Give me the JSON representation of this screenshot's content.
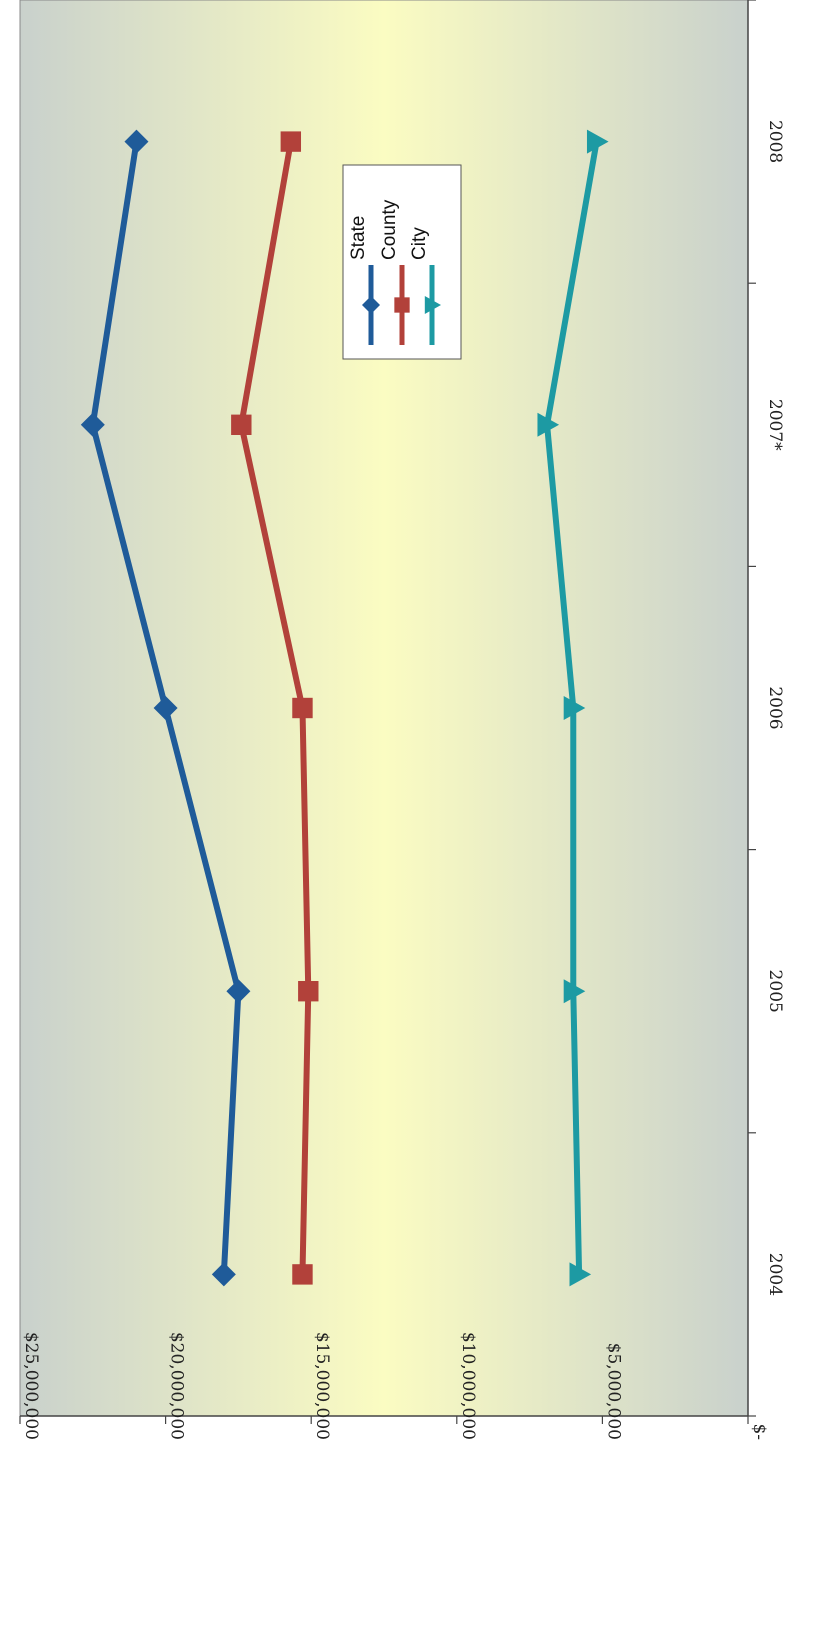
{
  "chart_data": {
    "type": "line",
    "orientation": "rotated-90-clockwise",
    "categories": [
      "2004",
      "2005",
      "2006",
      "2007*",
      "2008"
    ],
    "series": [
      {
        "name": "State",
        "marker": "diamond",
        "color": "#1f5b99",
        "values": [
          18000000,
          17500000,
          20000000,
          22500000,
          21000000
        ]
      },
      {
        "name": "County",
        "marker": "square",
        "color": "#b2413a",
        "values": [
          15300000,
          15100000,
          15300000,
          17400000,
          15700000
        ]
      },
      {
        "name": "City",
        "marker": "triangle",
        "color": "#1d9aa3",
        "values": [
          5800000,
          6000000,
          6000000,
          6900000,
          5200000
        ]
      }
    ],
    "y_tick_labels": [
      "$-",
      "$5,000,000",
      "$10,000,000",
      "$15,000,000",
      "$20,000,000",
      "$25,000,000"
    ],
    "ylim": [
      0,
      25000000
    ],
    "grid": false,
    "legend_placement": "top-right",
    "plot_background": {
      "edge": "#c9d1cc",
      "center": "#fbfcc2"
    }
  }
}
